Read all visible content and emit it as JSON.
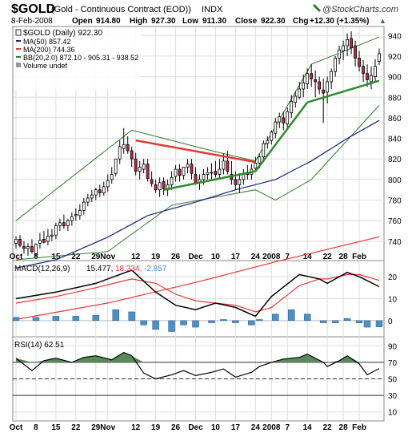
{
  "header": {
    "symbol": "$GOLD",
    "name": "(Gold - Continuous Contract (EOD))",
    "exchange": "INDX",
    "watermark": "@StockCharts.com",
    "date": "8-Feb-2008",
    "open_label": "Open",
    "open": "914.80",
    "high_label": "High",
    "high": "927.30",
    "low_label": "Low",
    "low": "911.30",
    "close_label": "Close",
    "close": "922.30",
    "chg_label": "Chg",
    "chg": "+12.30 (+1.35%)",
    "chg_arrow": "▲"
  },
  "legend": {
    "price": "$GOLD (Daily) 922.30",
    "ma50": "MA(50) 857.42",
    "ma200": "MA(200) 744.36",
    "bb": "BB(20,2.0) 872.10 - 905.31 - 938.52",
    "volume": "Volume undef"
  },
  "macd_panel": {
    "label": "MACD(12,26,9)",
    "v1": "15.477,",
    "v2": "18.334,",
    "v3": "-2.857"
  },
  "rsi_panel": {
    "label": "RSI(14) 62.51"
  },
  "colors": {
    "up": "#ffffff",
    "down": "#cc2244",
    "ma50": "#1a237e",
    "ma200": "#e53935",
    "bb": "#2e7d32",
    "trend_red": "#e53935",
    "trend_green": "#2e8b2e",
    "macd_line": "#000000",
    "signal_line": "#e53935",
    "histogram": "#4a90c8",
    "rsi_fill": "#5a8a5a"
  },
  "chart_data": [
    {
      "type": "candlestick",
      "title": "$GOLD (Daily) 922.30",
      "x": [
        "Oct 1",
        "Oct 2",
        "Oct 3",
        "Oct 4",
        "Oct 5",
        "Oct 8",
        "Oct 9",
        "Oct 10",
        "Oct 11",
        "Oct 12",
        "Oct 15",
        "Oct 16",
        "Oct 17",
        "Oct 18",
        "Oct 19",
        "Oct 22",
        "Oct 23",
        "Oct 24",
        "Oct 25",
        "Oct 26",
        "Oct 29",
        "Oct 30",
        "Oct 31",
        "Nov 1",
        "Nov 2",
        "Nov 5",
        "Nov 6",
        "Nov 7",
        "Nov 8",
        "Nov 9",
        "Nov 12",
        "Nov 13",
        "Nov 14",
        "Nov 15",
        "Nov 16",
        "Nov 19",
        "Nov 20",
        "Nov 21",
        "Nov 22",
        "Nov 23",
        "Nov 26",
        "Nov 27",
        "Nov 28",
        "Nov 29",
        "Nov 30",
        "Dec 3",
        "Dec 4",
        "Dec 5",
        "Dec 6",
        "Dec 7",
        "Dec 10",
        "Dec 11",
        "Dec 12",
        "Dec 13",
        "Dec 14",
        "Dec 17",
        "Dec 18",
        "Dec 19",
        "Dec 20",
        "Dec 21",
        "Dec 24",
        "Dec 26",
        "Dec 27",
        "Dec 28",
        "Dec 31",
        "Jan 2",
        "Jan 3",
        "Jan 4",
        "Jan 7",
        "Jan 8",
        "Jan 9",
        "Jan 10",
        "Jan 11",
        "Jan 14",
        "Jan 15",
        "Jan 16",
        "Jan 17",
        "Jan 18",
        "Jan 22",
        "Jan 23",
        "Jan 24",
        "Jan 25",
        "Jan 28",
        "Jan 29",
        "Jan 30",
        "Jan 31",
        "Feb 1",
        "Feb 4",
        "Feb 5",
        "Feb 6",
        "Feb 7",
        "Feb 8"
      ],
      "open": [
        738,
        742,
        735,
        733,
        735,
        728,
        738,
        742,
        740,
        745,
        746,
        755,
        758,
        755,
        760,
        765,
        765,
        770,
        778,
        782,
        785,
        790,
        787,
        793,
        800,
        806,
        820,
        830,
        834,
        828,
        820,
        808,
        810,
        815,
        800,
        795,
        790,
        798,
        790,
        795,
        803,
        810,
        804,
        812,
        815,
        805,
        797,
        800,
        805,
        807,
        808,
        805,
        810,
        818,
        805,
        800,
        795,
        800,
        806,
        805,
        811,
        816,
        822,
        835,
        838,
        845,
        856,
        860,
        854,
        865,
        875,
        880,
        888,
        893,
        903,
        897,
        895,
        887,
        885,
        895,
        905,
        918,
        925,
        930,
        937,
        930,
        918,
        910,
        903,
        895,
        900,
        914.8
      ],
      "high": [
        745,
        746,
        740,
        738,
        742,
        738,
        748,
        750,
        752,
        752,
        758,
        762,
        766,
        762,
        768,
        772,
        776,
        782,
        786,
        790,
        792,
        795,
        798,
        805,
        812,
        820,
        838,
        850,
        842,
        832,
        826,
        818,
        820,
        820,
        808,
        800,
        802,
        802,
        800,
        808,
        814,
        815,
        812,
        820,
        820,
        812,
        805,
        810,
        812,
        816,
        818,
        820,
        825,
        828,
        818,
        808,
        806,
        810,
        814,
        815,
        822,
        825,
        838,
        842,
        848,
        860,
        865,
        866,
        870,
        882,
        886,
        895,
        902,
        908,
        912,
        906,
        900,
        898,
        900,
        908,
        920,
        930,
        935,
        942,
        944,
        935,
        925,
        916,
        912,
        910,
        917,
        927.3
      ],
      "low": [
        733,
        734,
        728,
        726,
        728,
        725,
        733,
        738,
        736,
        740,
        742,
        750,
        752,
        750,
        755,
        760,
        761,
        766,
        774,
        778,
        780,
        783,
        784,
        788,
        796,
        803,
        815,
        825,
        825,
        812,
        804,
        800,
        806,
        798,
        793,
        787,
        783,
        785,
        784,
        790,
        798,
        798,
        800,
        806,
        800,
        795,
        790,
        795,
        800,
        800,
        802,
        800,
        805,
        805,
        795,
        790,
        787,
        795,
        800,
        800,
        808,
        811,
        818,
        830,
        834,
        840,
        850,
        848,
        848,
        860,
        870,
        878,
        880,
        888,
        890,
        880,
        883,
        855,
        874,
        888,
        900,
        912,
        916,
        920,
        922,
        910,
        905,
        895,
        890,
        888,
        895,
        911.3
      ],
      "close": [
        742,
        736,
        733,
        735,
        730,
        737,
        741,
        739,
        745,
        746,
        755,
        758,
        755,
        760,
        764,
        766,
        770,
        778,
        782,
        785,
        790,
        787,
        793,
        799,
        805,
        820,
        832,
        834,
        828,
        820,
        808,
        812,
        815,
        801,
        796,
        790,
        797,
        791,
        795,
        802,
        810,
        804,
        812,
        815,
        806,
        797,
        800,
        805,
        807,
        807,
        805,
        810,
        818,
        808,
        800,
        795,
        800,
        806,
        805,
        810,
        816,
        822,
        835,
        838,
        846,
        856,
        861,
        855,
        866,
        876,
        881,
        888,
        894,
        903,
        898,
        895,
        888,
        884,
        895,
        905,
        918,
        926,
        930,
        936,
        928,
        918,
        910,
        903,
        897,
        901,
        910,
        922.3
      ],
      "ma50": [
        {
          "x": "Oct 1",
          "y": 714
        },
        {
          "x": "Oct 15",
          "y": 722
        },
        {
          "x": "Nov 1",
          "y": 744
        },
        {
          "x": "Nov 15",
          "y": 765
        },
        {
          "x": "Dec 3",
          "y": 778
        },
        {
          "x": "Dec 17",
          "y": 790
        },
        {
          "x": "Jan 2",
          "y": 800
        },
        {
          "x": "Jan 15",
          "y": 818
        },
        {
          "x": "Jan 29",
          "y": 840
        },
        {
          "x": "Feb 8",
          "y": 857.42
        }
      ],
      "ma200": [
        {
          "x": "Oct 1",
          "y": 664
        },
        {
          "x": "Nov 1",
          "y": 680
        },
        {
          "x": "Dec 3",
          "y": 700
        },
        {
          "x": "Jan 2",
          "y": 720
        },
        {
          "x": "Feb 8",
          "y": 744.36
        }
      ],
      "bb_upper": [
        {
          "x": "Oct 1",
          "y": 760
        },
        {
          "x": "Nov 9",
          "y": 848
        },
        {
          "x": "Dec 7",
          "y": 828
        },
        {
          "x": "Dec 24",
          "y": 818
        },
        {
          "x": "Jan 15",
          "y": 912
        },
        {
          "x": "Feb 8",
          "y": 938.52
        }
      ],
      "bb_lower": [
        {
          "x": "Oct 1",
          "y": 722
        },
        {
          "x": "Nov 1",
          "y": 730
        },
        {
          "x": "Nov 23",
          "y": 775
        },
        {
          "x": "Dec 24",
          "y": 790
        },
        {
          "x": "Jan 2",
          "y": 780
        },
        {
          "x": "Jan 15",
          "y": 800
        },
        {
          "x": "Feb 8",
          "y": 872.1
        }
      ],
      "trendlines": [
        {
          "color": "red",
          "from": {
            "x": "Nov 12",
            "y": 838
          },
          "to": {
            "x": "Dec 24",
            "y": 817
          }
        },
        {
          "color": "green",
          "from": {
            "x": "Nov 21",
            "y": 790
          },
          "to": {
            "x": "Dec 24",
            "y": 808
          }
        },
        {
          "color": "green",
          "from": {
            "x": "Dec 24",
            "y": 808
          },
          "to": {
            "x": "Jan 14",
            "y": 875
          }
        },
        {
          "color": "green",
          "from": {
            "x": "Jan 14",
            "y": 875
          },
          "to": {
            "x": "Feb 8",
            "y": 896
          }
        }
      ],
      "ylim": [
        722,
        948
      ],
      "yticks": [
        740,
        760,
        780,
        800,
        820,
        840,
        860,
        880,
        900,
        920,
        940
      ],
      "xticks": [
        {
          "x": "Oct 1",
          "label": "Oct"
        },
        {
          "x": "Oct 8",
          "label": "8"
        },
        {
          "x": "Oct 15",
          "label": "15"
        },
        {
          "x": "Oct 22",
          "label": "22"
        },
        {
          "x": "Oct 29",
          "label": "29"
        },
        {
          "x": "Nov 1",
          "label": "Nov"
        },
        {
          "x": "Nov 12",
          "label": "12"
        },
        {
          "x": "Nov 19",
          "label": "19"
        },
        {
          "x": "Nov 26",
          "label": "26"
        },
        {
          "x": "Dec 3",
          "label": "Dec"
        },
        {
          "x": "Dec 10",
          "label": "10"
        },
        {
          "x": "Dec 17",
          "label": "17"
        },
        {
          "x": "Dec 24",
          "label": "24"
        },
        {
          "x": "Dec 31",
          "label": "2008"
        },
        {
          "x": "Jan 7",
          "label": "7"
        },
        {
          "x": "Jan 14",
          "label": "14"
        },
        {
          "x": "Jan 22",
          "label": "22"
        },
        {
          "x": "Jan 28",
          "label": "28"
        },
        {
          "x": "Feb 1",
          "label": "Feb"
        }
      ],
      "grid": true,
      "legend_position": "top-left"
    },
    {
      "type": "line",
      "title": "MACD(12,26,9) 15.477, 18.334, -2.857",
      "series": [
        {
          "name": "MACD",
          "points": [
            {
              "x": "Oct 1",
              "y": 10
            },
            {
              "x": "Oct 15",
              "y": 13
            },
            {
              "x": "Oct 29",
              "y": 17
            },
            {
              "x": "Nov 9",
              "y": 23
            },
            {
              "x": "Nov 19",
              "y": 13
            },
            {
              "x": "Nov 26",
              "y": 7
            },
            {
              "x": "Dec 3",
              "y": 5
            },
            {
              "x": "Dec 10",
              "y": 8
            },
            {
              "x": "Dec 17",
              "y": 6
            },
            {
              "x": "Dec 24",
              "y": 2
            },
            {
              "x": "Dec 31",
              "y": 11
            },
            {
              "x": "Jan 10",
              "y": 21
            },
            {
              "x": "Jan 17",
              "y": 19
            },
            {
              "x": "Jan 22",
              "y": 17
            },
            {
              "x": "Jan 29",
              "y": 22
            },
            {
              "x": "Feb 1",
              "y": 20
            },
            {
              "x": "Feb 8",
              "y": 15.477
            }
          ]
        },
        {
          "name": "Signal",
          "points": [
            {
              "x": "Oct 1",
              "y": 8
            },
            {
              "x": "Oct 15",
              "y": 11
            },
            {
              "x": "Oct 29",
              "y": 15
            },
            {
              "x": "Nov 9",
              "y": 19
            },
            {
              "x": "Nov 19",
              "y": 17
            },
            {
              "x": "Nov 26",
              "y": 12
            },
            {
              "x": "Dec 3",
              "y": 9
            },
            {
              "x": "Dec 10",
              "y": 8
            },
            {
              "x": "Dec 17",
              "y": 7
            },
            {
              "x": "Dec 24",
              "y": 4
            },
            {
              "x": "Dec 31",
              "y": 6
            },
            {
              "x": "Jan 10",
              "y": 16
            },
            {
              "x": "Jan 17",
              "y": 19
            },
            {
              "x": "Jan 22",
              "y": 19
            },
            {
              "x": "Jan 29",
              "y": 21
            },
            {
              "x": "Feb 1",
              "y": 21
            },
            {
              "x": "Feb 8",
              "y": 18.334
            }
          ]
        }
      ],
      "histogram": [
        {
          "x": "Oct 1",
          "y": 1.5
        },
        {
          "x": "Oct 8",
          "y": 1.5
        },
        {
          "x": "Oct 15",
          "y": 2
        },
        {
          "x": "Oct 22",
          "y": 2
        },
        {
          "x": "Oct 29",
          "y": 2.5
        },
        {
          "x": "Nov 5",
          "y": 5
        },
        {
          "x": "Nov 9",
          "y": 4
        },
        {
          "x": "Nov 14",
          "y": -2
        },
        {
          "x": "Nov 19",
          "y": -4
        },
        {
          "x": "Nov 23",
          "y": -5
        },
        {
          "x": "Nov 28",
          "y": -2
        },
        {
          "x": "Dec 3",
          "y": -3
        },
        {
          "x": "Dec 7",
          "y": -1
        },
        {
          "x": "Dec 12",
          "y": 0.5
        },
        {
          "x": "Dec 17",
          "y": -1
        },
        {
          "x": "Dec 21",
          "y": -2
        },
        {
          "x": "Dec 26",
          "y": 0.5
        },
        {
          "x": "Jan 2",
          "y": 3
        },
        {
          "x": "Jan 8",
          "y": 5
        },
        {
          "x": "Jan 14",
          "y": 3
        },
        {
          "x": "Jan 18",
          "y": -1
        },
        {
          "x": "Jan 24",
          "y": -1
        },
        {
          "x": "Jan 29",
          "y": 1
        },
        {
          "x": "Feb 1",
          "y": -1
        },
        {
          "x": "Feb 5",
          "y": -3
        },
        {
          "x": "Feb 8",
          "y": -2.857
        }
      ],
      "ylim": [
        -7,
        27
      ],
      "yticks": [
        0,
        10,
        20
      ]
    },
    {
      "type": "line",
      "title": "RSI(14) 62.51",
      "series": [
        {
          "name": "RSI",
          "points": [
            {
              "x": "Oct 1",
              "y": 75
            },
            {
              "x": "Oct 5",
              "y": 60
            },
            {
              "x": "Oct 10",
              "y": 72
            },
            {
              "x": "Oct 15",
              "y": 75
            },
            {
              "x": "Oct 19",
              "y": 70
            },
            {
              "x": "Oct 24",
              "y": 76
            },
            {
              "x": "Oct 29",
              "y": 78
            },
            {
              "x": "Nov 2",
              "y": 73
            },
            {
              "x": "Nov 7",
              "y": 82
            },
            {
              "x": "Nov 9",
              "y": 78
            },
            {
              "x": "Nov 14",
              "y": 57
            },
            {
              "x": "Nov 19",
              "y": 50
            },
            {
              "x": "Nov 23",
              "y": 55
            },
            {
              "x": "Nov 28",
              "y": 60
            },
            {
              "x": "Dec 3",
              "y": 54
            },
            {
              "x": "Dec 7",
              "y": 58
            },
            {
              "x": "Dec 12",
              "y": 62
            },
            {
              "x": "Dec 17",
              "y": 52
            },
            {
              "x": "Dec 21",
              "y": 58
            },
            {
              "x": "Dec 26",
              "y": 65
            },
            {
              "x": "Dec 31",
              "y": 70
            },
            {
              "x": "Jan 4",
              "y": 74
            },
            {
              "x": "Jan 10",
              "y": 76
            },
            {
              "x": "Jan 14",
              "y": 80
            },
            {
              "x": "Jan 18",
              "y": 70
            },
            {
              "x": "Jan 22",
              "y": 65
            },
            {
              "x": "Jan 25",
              "y": 72
            },
            {
              "x": "Jan 29",
              "y": 78
            },
            {
              "x": "Feb 1",
              "y": 68
            },
            {
              "x": "Feb 5",
              "y": 55
            },
            {
              "x": "Feb 8",
              "y": 62.51
            }
          ]
        }
      ],
      "ylim": [
        0,
        100
      ],
      "yticks": [
        10,
        30,
        50,
        70,
        90
      ],
      "reference_lines": [
        30,
        50,
        70
      ]
    }
  ]
}
